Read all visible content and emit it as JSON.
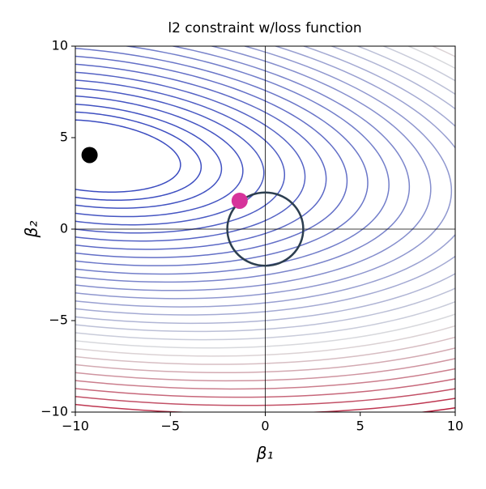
{
  "chart_data": {
    "type": "contour",
    "title": "l2 constraint w/loss function",
    "xlabel": "β₁",
    "ylabel": "β₂",
    "xlim": [
      -10,
      10
    ],
    "ylim": [
      -10,
      10
    ],
    "xticks": [
      {
        "value": -10,
        "label": "−10"
      },
      {
        "value": -5,
        "label": "−5"
      },
      0,
      5,
      10
    ],
    "yticks": [
      {
        "value": -10,
        "label": "−10"
      },
      {
        "value": -5,
        "label": "−5"
      },
      0,
      5,
      10
    ],
    "contours": {
      "center": [
        -9.3,
        4
      ],
      "matrix": [
        [
          1,
          0.6
        ],
        [
          0.6,
          6
        ]
      ],
      "levels": [
        22,
        33,
        46,
        62,
        80,
        100,
        122,
        147,
        174,
        203,
        235,
        268,
        305,
        343,
        384,
        426,
        472,
        519,
        569,
        621,
        675,
        732,
        791,
        852,
        915,
        981,
        1049,
        1119,
        1191,
        1266
      ],
      "colormap": [
        "#3b4cc0",
        "#dddddd",
        "#b40426"
      ]
    },
    "constraint": {
      "radius": 2,
      "color": "#2c3e50"
    },
    "points": [
      {
        "x": -9.25,
        "y": 4.05,
        "color": "#000000"
      },
      {
        "x": -1.35,
        "y": 1.55,
        "color": "#d6339b"
      }
    ]
  }
}
